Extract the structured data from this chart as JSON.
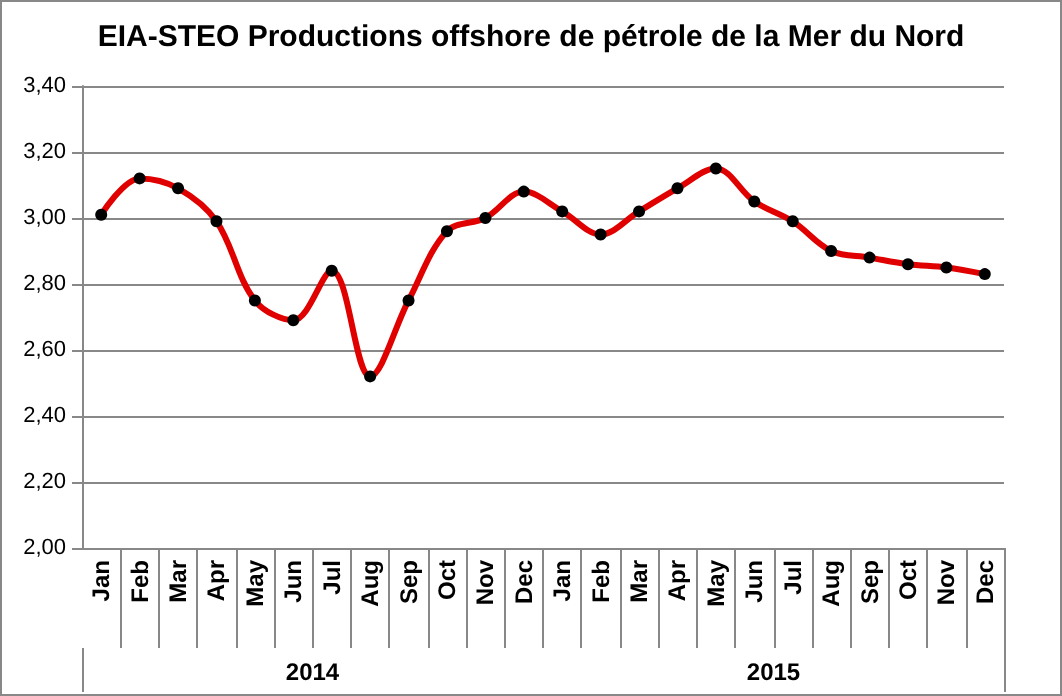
{
  "chart_data": {
    "type": "line",
    "title": "EIA-STEO Productions offshore de pétrole de la Mer du Nord",
    "categories": [
      "Jan",
      "Feb",
      "Mar",
      "Apr",
      "May",
      "Jun",
      "Jul",
      "Aug",
      "Sep",
      "Oct",
      "Nov",
      "Dec",
      "Jan",
      "Feb",
      "Mar",
      "Apr",
      "May",
      "Jun",
      "Jul",
      "Aug",
      "Sep",
      "Oct",
      "Nov",
      "Dec"
    ],
    "series": [
      {
        "color": "#e00000",
        "values": [
          3.01,
          3.12,
          3.09,
          2.99,
          2.75,
          2.69,
          2.84,
          2.52,
          2.75,
          2.96,
          3.0,
          3.08,
          3.02,
          2.95,
          3.02,
          3.09,
          3.15,
          3.05,
          2.99,
          2.9,
          2.88,
          2.86,
          2.85,
          2.83
        ]
      }
    ],
    "annotations": [
      "2014",
      "2015"
    ],
    "ylim": [
      2.0,
      3.4
    ],
    "yticks": [
      {
        "value": 2.0,
        "label": "2,00"
      },
      {
        "value": 2.2,
        "label": "2,20"
      },
      {
        "value": 2.4,
        "label": "2,40"
      },
      {
        "value": 2.6,
        "label": "2,60"
      },
      {
        "value": 2.8,
        "label": "2,80"
      },
      {
        "value": 3.0,
        "label": "3,00"
      },
      {
        "value": 3.2,
        "label": "3,20"
      },
      {
        "value": 3.4,
        "label": "3,40"
      }
    ],
    "grid": "y",
    "marker": "circle",
    "line_style": "solid"
  }
}
